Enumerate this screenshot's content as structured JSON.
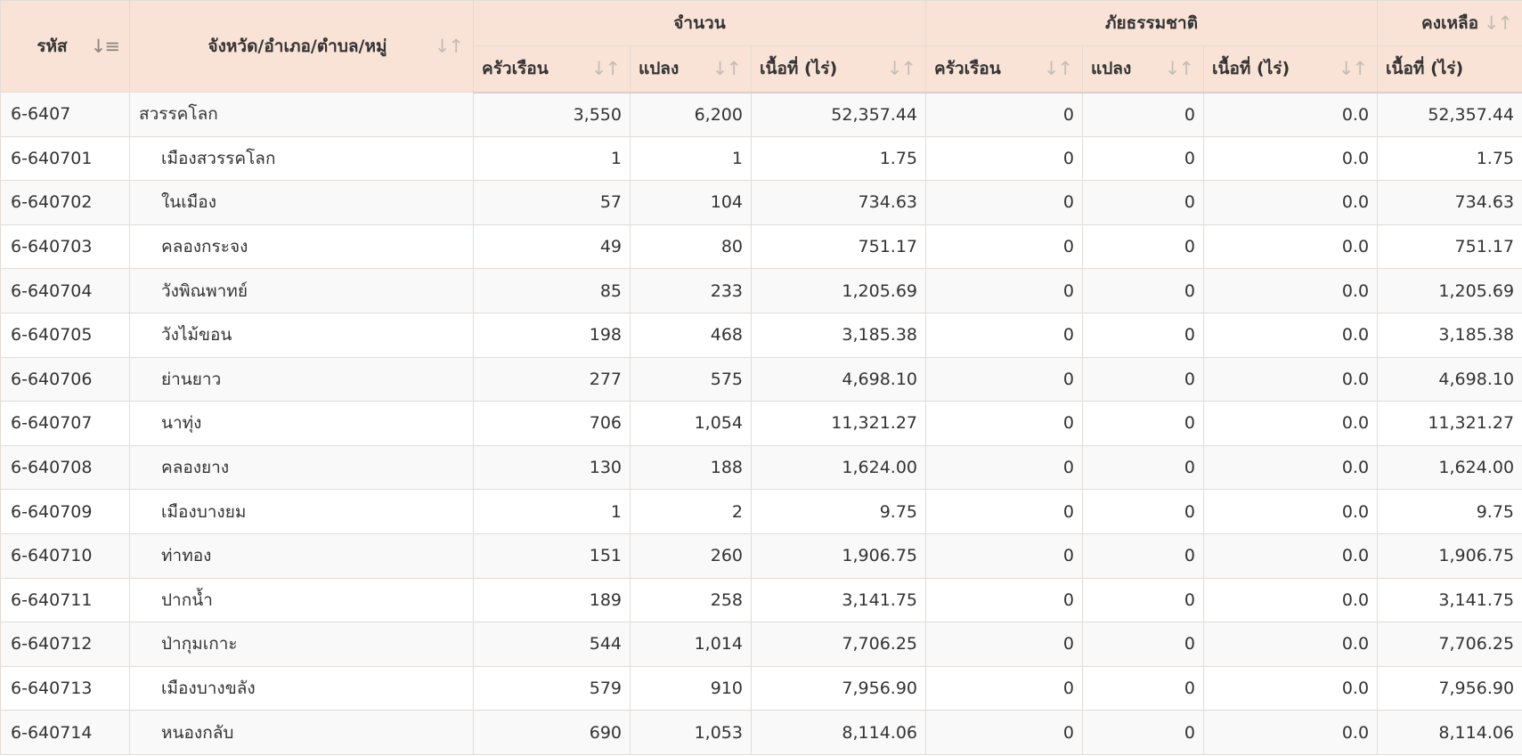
{
  "header": {
    "group_amount": "จำนวน",
    "group_disaster": "ภัยธรรมชาติ",
    "group_remaining": "คงเหลือ",
    "col_code": "รหัส",
    "col_name": "จังหวัด/อำเภอ/ตำบล/หมู่",
    "col_households": "ครัวเรือน",
    "col_plots": "แปลง",
    "col_area": "เนื้อที่ (ไร่)",
    "sort_icon": "sort-updown-icon",
    "sort_active_icon": "sort-desc-icon"
  },
  "rows": [
    {
      "code": "6-6407",
      "name": "สวรรคโลก",
      "hh": "3,550",
      "plots": "6,200",
      "area": "52,357.44",
      "dhh": "0",
      "dplots": "0",
      "darea": "0.0",
      "remain": "52,357.44"
    },
    {
      "code": "6-640701",
      "name": "เมืองสวรรคโลก",
      "hh": "1",
      "plots": "1",
      "area": "1.75",
      "dhh": "0",
      "dplots": "0",
      "darea": "0.0",
      "remain": "1.75"
    },
    {
      "code": "6-640702",
      "name": "ในเมือง",
      "hh": "57",
      "plots": "104",
      "area": "734.63",
      "dhh": "0",
      "dplots": "0",
      "darea": "0.0",
      "remain": "734.63"
    },
    {
      "code": "6-640703",
      "name": "คลองกระจง",
      "hh": "49",
      "plots": "80",
      "area": "751.17",
      "dhh": "0",
      "dplots": "0",
      "darea": "0.0",
      "remain": "751.17"
    },
    {
      "code": "6-640704",
      "name": "วังพิณพาทย์",
      "hh": "85",
      "plots": "233",
      "area": "1,205.69",
      "dhh": "0",
      "dplots": "0",
      "darea": "0.0",
      "remain": "1,205.69"
    },
    {
      "code": "6-640705",
      "name": "วังไม้ขอน",
      "hh": "198",
      "plots": "468",
      "area": "3,185.38",
      "dhh": "0",
      "dplots": "0",
      "darea": "0.0",
      "remain": "3,185.38"
    },
    {
      "code": "6-640706",
      "name": "ย่านยาว",
      "hh": "277",
      "plots": "575",
      "area": "4,698.10",
      "dhh": "0",
      "dplots": "0",
      "darea": "0.0",
      "remain": "4,698.10"
    },
    {
      "code": "6-640707",
      "name": "นาทุ่ง",
      "hh": "706",
      "plots": "1,054",
      "area": "11,321.27",
      "dhh": "0",
      "dplots": "0",
      "darea": "0.0",
      "remain": "11,321.27"
    },
    {
      "code": "6-640708",
      "name": "คลองยาง",
      "hh": "130",
      "plots": "188",
      "area": "1,624.00",
      "dhh": "0",
      "dplots": "0",
      "darea": "0.0",
      "remain": "1,624.00"
    },
    {
      "code": "6-640709",
      "name": "เมืองบางยม",
      "hh": "1",
      "plots": "2",
      "area": "9.75",
      "dhh": "0",
      "dplots": "0",
      "darea": "0.0",
      "remain": "9.75"
    },
    {
      "code": "6-640710",
      "name": "ท่าทอง",
      "hh": "151",
      "plots": "260",
      "area": "1,906.75",
      "dhh": "0",
      "dplots": "0",
      "darea": "0.0",
      "remain": "1,906.75"
    },
    {
      "code": "6-640711",
      "name": "ปากน้ำ",
      "hh": "189",
      "plots": "258",
      "area": "3,141.75",
      "dhh": "0",
      "dplots": "0",
      "darea": "0.0",
      "remain": "3,141.75"
    },
    {
      "code": "6-640712",
      "name": "ป่ากุมเกาะ",
      "hh": "544",
      "plots": "1,014",
      "area": "7,706.25",
      "dhh": "0",
      "dplots": "0",
      "darea": "0.0",
      "remain": "7,706.25"
    },
    {
      "code": "6-640713",
      "name": "เมืองบางขลัง",
      "hh": "579",
      "plots": "910",
      "area": "7,956.90",
      "dhh": "0",
      "dplots": "0",
      "darea": "0.0",
      "remain": "7,956.90"
    },
    {
      "code": "6-640714",
      "name": "หนองกลับ",
      "hh": "690",
      "plots": "1,053",
      "area": "8,114.06",
      "dhh": "0",
      "dplots": "0",
      "darea": "0.0",
      "remain": "8,114.06"
    }
  ]
}
